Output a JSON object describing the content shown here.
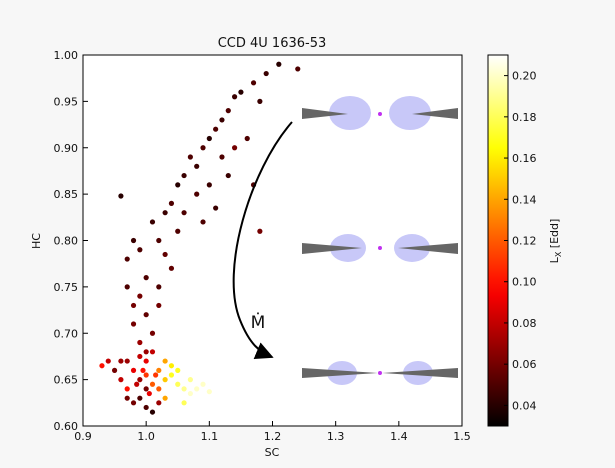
{
  "chart_data": {
    "type": "scatter",
    "title": "CCD 4U 1636-53",
    "x_label": "SC",
    "y_label": "HC",
    "colorbar_label": "L_X [Edd]",
    "annotation": "Ṁ",
    "colormap": "hot",
    "xlim": [
      0.9,
      1.5
    ],
    "ylim": [
      0.6,
      1.0
    ],
    "clim": [
      0.03,
      0.21
    ],
    "xticks": [
      0.9,
      {
        "value": 1,
        "label": "1.0"
      },
      1.1,
      1.2,
      1.3,
      1.4,
      1.5
    ],
    "yticks": [
      {
        "value": 0.6,
        "label": "0.60"
      },
      0.65,
      {
        "value": 0.7,
        "label": "0.70"
      },
      0.75,
      {
        "value": 0.8,
        "label": "0.80"
      },
      0.85,
      {
        "value": 0.9,
        "label": "0.90"
      },
      0.95,
      {
        "value": 1,
        "label": "1.00"
      }
    ],
    "cticks": [
      0.04,
      0.06,
      0.08,
      {
        "value": 0.1,
        "label": "0.10"
      },
      0.12,
      0.14,
      0.16,
      0.18,
      {
        "value": 0.2,
        "label": "0.20"
      }
    ],
    "x": [
      0.96,
      0.97,
      0.98,
      0.99,
      1.0,
      1.01,
      1.02,
      1.03,
      1.04,
      1.05,
      1.06,
      1.07,
      1.08,
      1.09,
      1.1,
      1.11,
      1.12,
      1.13,
      1.14,
      1.15,
      1.17,
      1.19,
      1.21,
      1.24,
      1.18,
      1.12,
      1.1,
      1.05,
      1.03,
      0.99,
      1.0,
      0.98,
      1.02,
      1.04,
      1.01,
      0.99,
      1.02,
      1.06,
      1.08,
      1.14,
      1.16,
      1.13,
      1.17,
      1.18,
      1.09,
      1.11,
      0.97,
      0.98,
      1.0,
      0.99,
      0.95,
      0.96,
      0.97,
      0.98,
      0.99,
      1.0,
      1.01,
      1.0,
      0.99,
      0.98,
      1.0,
      1.01,
      0.97,
      1.02,
      1.03,
      1.04,
      1.05,
      1.06,
      1.07,
      1.08,
      1.09,
      1.1,
      1.04,
      1.03,
      1.05,
      1.02,
      0.94,
      0.93,
      1.0,
      1.01,
      0.96,
      0.995,
      1.005,
      1.015,
      0.985,
      1.07,
      1.06,
      0.97,
      1.02,
      1.03
    ],
    "y": [
      0.848,
      0.78,
      0.8,
      0.79,
      0.76,
      0.82,
      0.8,
      0.83,
      0.84,
      0.86,
      0.87,
      0.89,
      0.88,
      0.9,
      0.91,
      0.92,
      0.93,
      0.94,
      0.955,
      0.96,
      0.97,
      0.98,
      0.99,
      0.985,
      0.95,
      0.89,
      0.86,
      0.81,
      0.785,
      0.74,
      0.72,
      0.71,
      0.75,
      0.77,
      0.7,
      0.69,
      0.73,
      0.83,
      0.85,
      0.9,
      0.91,
      0.87,
      0.86,
      0.81,
      0.82,
      0.835,
      0.75,
      0.73,
      0.68,
      0.675,
      0.66,
      0.65,
      0.64,
      0.66,
      0.65,
      0.655,
      0.645,
      0.64,
      0.63,
      0.625,
      0.62,
      0.615,
      0.67,
      0.66,
      0.65,
      0.655,
      0.645,
      0.64,
      0.635,
      0.64,
      0.645,
      0.637,
      0.665,
      0.67,
      0.66,
      0.64,
      0.67,
      0.665,
      0.67,
      0.68,
      0.67,
      0.66,
      0.635,
      0.655,
      0.645,
      0.65,
      0.625,
      0.63,
      0.625,
      0.63
    ],
    "c": [
      0.04,
      0.05,
      0.045,
      0.05,
      0.05,
      0.045,
      0.05,
      0.045,
      0.05,
      0.04,
      0.045,
      0.05,
      0.045,
      0.05,
      0.04,
      0.05,
      0.045,
      0.05,
      0.045,
      0.04,
      0.05,
      0.045,
      0.04,
      0.05,
      0.045,
      0.05,
      0.045,
      0.05,
      0.055,
      0.06,
      0.055,
      0.06,
      0.05,
      0.055,
      0.06,
      0.07,
      0.06,
      0.05,
      0.05,
      0.06,
      0.05,
      0.045,
      0.05,
      0.06,
      0.05,
      0.045,
      0.05,
      0.06,
      0.07,
      0.08,
      0.06,
      0.08,
      0.1,
      0.09,
      0.07,
      0.11,
      0.12,
      0.06,
      0.05,
      0.06,
      0.05,
      0.04,
      0.07,
      0.13,
      0.15,
      0.17,
      0.18,
      0.19,
      0.2,
      0.2,
      0.2,
      0.2,
      0.16,
      0.14,
      0.17,
      0.12,
      0.08,
      0.1,
      0.09,
      0.08,
      0.07,
      0.1,
      0.09,
      0.11,
      0.08,
      0.19,
      0.18,
      0.06,
      0.07,
      0.14
    ]
  }
}
